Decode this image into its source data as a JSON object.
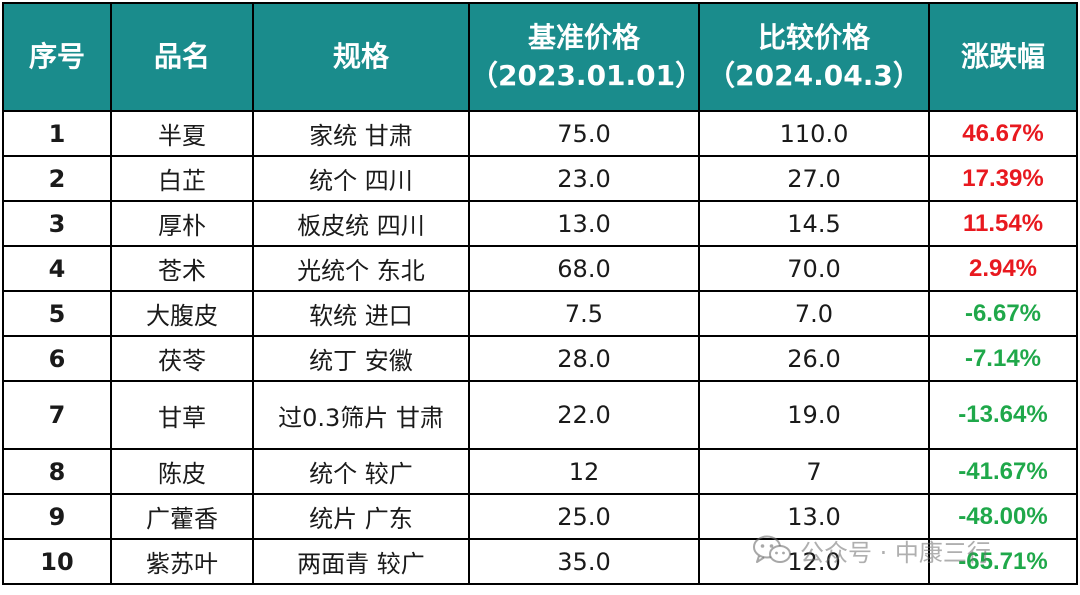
{
  "table": {
    "headers": {
      "index": "序号",
      "name": "品名",
      "spec": "规格",
      "base_price": {
        "line1": "基准价格",
        "line2": "（2023.01.01）"
      },
      "compare_price": {
        "line1": "比较价格",
        "line2": "（2024.04.3）"
      },
      "change": "涨跌幅"
    },
    "rows": [
      {
        "index": "1",
        "name": "半夏",
        "spec": "家统 甘肃",
        "base": "75.0",
        "compare": "110.0",
        "change": "46.67%",
        "direction": "up"
      },
      {
        "index": "2",
        "name": "白芷",
        "spec": "统个 四川",
        "base": "23.0",
        "compare": "27.0",
        "change": "17.39%",
        "direction": "up"
      },
      {
        "index": "3",
        "name": "厚朴",
        "spec": "板皮统 四川",
        "base": "13.0",
        "compare": "14.5",
        "change": "11.54%",
        "direction": "up"
      },
      {
        "index": "4",
        "name": "苍术",
        "spec": "光统个 东北",
        "base": "68.0",
        "compare": "70.0",
        "change": "2.94%",
        "direction": "up"
      },
      {
        "index": "5",
        "name": "大腹皮",
        "spec": "软统 进口",
        "base": "7.5",
        "compare": "7.0",
        "change": "-6.67%",
        "direction": "down"
      },
      {
        "index": "6",
        "name": "茯苓",
        "spec": "统丁 安徽",
        "base": "28.0",
        "compare": "26.0",
        "change": "-7.14%",
        "direction": "down"
      },
      {
        "index": "7",
        "name": "甘草",
        "spec": "过0.3筛片 甘肃",
        "base": "22.0",
        "compare": "19.0",
        "change": "-13.64%",
        "direction": "down"
      },
      {
        "index": "8",
        "name": "陈皮",
        "spec": "统个 较广",
        "base": "12",
        "compare": "7",
        "change": "-41.67%",
        "direction": "down"
      },
      {
        "index": "9",
        "name": "广藿香",
        "spec": "统片 广东",
        "base": "25.0",
        "compare": "13.0",
        "change": "-48.00%",
        "direction": "down"
      },
      {
        "index": "10",
        "name": "紫苏叶",
        "spec": "两面青 较广",
        "base": "35.0",
        "compare": "12.0",
        "change": "-65.71%",
        "direction": "down"
      }
    ]
  },
  "watermark": {
    "text": "公众号 · 中康三行",
    "icon": "wechat-icon"
  },
  "colors": {
    "header_bg": "#1a8c8c",
    "header_text": "#ffffff",
    "up": "#e8191f",
    "down": "#1fa84a"
  }
}
